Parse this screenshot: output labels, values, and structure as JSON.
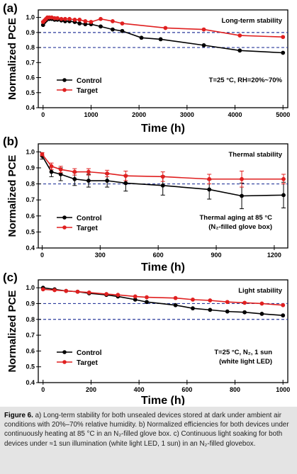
{
  "chart_data": [
    {
      "type": "line",
      "panel_label": "(a)",
      "title": "Long-term stability",
      "annotations": [
        "T=25 °C, RH=20%~70%"
      ],
      "xlabel": "Time (h)",
      "ylabel": "Normalized PCE",
      "xlim": [
        -100,
        5100
      ],
      "ylim": [
        0.4,
        1.05
      ],
      "xticks": [
        "0",
        "1000",
        "2000",
        "3000",
        "4000",
        "5000"
      ],
      "yticks": [
        "0.4",
        "0.5",
        "0.6",
        "0.7",
        "0.8",
        "0.9",
        "1.0"
      ],
      "reference_lines_y": [
        0.9,
        0.8
      ],
      "legend": {
        "position": "bottom-left",
        "entries": [
          "Control",
          "Target"
        ]
      },
      "series": [
        {
          "name": "Control",
          "color": "#000000",
          "x": [
            0,
            30,
            60,
            90,
            130,
            180,
            240,
            300,
            380,
            460,
            550,
            660,
            760,
            880,
            1000,
            1200,
            1450,
            1650,
            2050,
            2450,
            3350,
            4100,
            5000
          ],
          "y": [
            0.95,
            0.97,
            0.98,
            0.99,
            0.99,
            0.99,
            0.985,
            0.985,
            0.98,
            0.975,
            0.975,
            0.97,
            0.96,
            0.955,
            0.955,
            0.94,
            0.92,
            0.91,
            0.865,
            0.855,
            0.815,
            0.78,
            0.765
          ]
        },
        {
          "name": "Target",
          "color": "#e02020",
          "x": [
            0,
            30,
            60,
            90,
            130,
            180,
            240,
            300,
            380,
            460,
            550,
            660,
            760,
            880,
            1000,
            1200,
            1450,
            1650,
            2550,
            3350,
            4100,
            5000
          ],
          "y": [
            0.97,
            0.98,
            0.99,
            1.0,
            1.0,
            1.0,
            0.995,
            0.995,
            0.99,
            0.99,
            0.99,
            0.985,
            0.985,
            0.975,
            0.97,
            0.99,
            0.975,
            0.96,
            0.93,
            0.92,
            0.88,
            0.87
          ]
        }
      ]
    },
    {
      "type": "line",
      "panel_label": "(b)",
      "title": "Thermal stability",
      "annotations": [
        "Thermal aging at 85 °C",
        "(N₂-filled glove box)"
      ],
      "xlabel": "Time (h)",
      "ylabel": "Normalized PCE",
      "xlim": [
        -20,
        1270
      ],
      "ylim": [
        0.4,
        1.05
      ],
      "xticks": [
        "0",
        "300",
        "600",
        "900",
        "1200"
      ],
      "yticks": [
        "0.4",
        "0.5",
        "0.6",
        "0.7",
        "0.8",
        "0.9",
        "1.0"
      ],
      "reference_lines_y": [
        0.8
      ],
      "legend": {
        "position": "bottom-left",
        "entries": [
          "Control",
          "Target"
        ]
      },
      "series": [
        {
          "name": "Control",
          "color": "#000000",
          "x": [
            0,
            48,
            96,
            168,
            240,
            336,
            432,
            624,
            864,
            1032,
            1248
          ],
          "y": [
            0.975,
            0.875,
            0.86,
            0.83,
            0.82,
            0.82,
            0.805,
            0.79,
            0.765,
            0.725,
            0.73
          ],
          "error": [
            0.02,
            0.03,
            0.04,
            0.04,
            0.04,
            0.04,
            0.05,
            0.06,
            0.06,
            0.08,
            0.08
          ]
        },
        {
          "name": "Target",
          "color": "#e02020",
          "x": [
            0,
            48,
            96,
            168,
            240,
            336,
            432,
            624,
            864,
            1032,
            1248
          ],
          "y": [
            0.985,
            0.91,
            0.89,
            0.875,
            0.875,
            0.865,
            0.85,
            0.845,
            0.83,
            0.83,
            0.83
          ],
          "error": [
            0.01,
            0.02,
            0.02,
            0.02,
            0.02,
            0.02,
            0.03,
            0.03,
            0.03,
            0.05,
            0.03
          ]
        }
      ]
    },
    {
      "type": "line",
      "panel_label": "(c)",
      "title": "Light stability",
      "annotations": [
        "T=25 °C, N₂, 1 sun",
        "(white light LED)"
      ],
      "xlabel": "Time (h)",
      "ylabel": "Normalized PCE",
      "xlim": [
        -20,
        1020
      ],
      "ylim": [
        0.4,
        1.05
      ],
      "xticks": [
        "0",
        "200",
        "400",
        "600",
        "800",
        "1000"
      ],
      "yticks": [
        "0.4",
        "0.5",
        "0.6",
        "0.7",
        "0.8",
        "0.9",
        "1.0"
      ],
      "reference_lines_y": [
        0.9,
        0.8
      ],
      "legend": {
        "position": "bottom-left",
        "entries": [
          "Control",
          "Target"
        ]
      },
      "series": [
        {
          "name": "Control",
          "color": "#000000",
          "x": [
            0,
            48,
            96,
            144,
            192,
            264,
            312,
            384,
            432,
            552,
            624,
            696,
            768,
            840,
            912,
            1000
          ],
          "y": [
            1.0,
            0.99,
            0.98,
            0.975,
            0.965,
            0.955,
            0.945,
            0.925,
            0.91,
            0.89,
            0.87,
            0.86,
            0.85,
            0.845,
            0.835,
            0.825
          ]
        },
        {
          "name": "Target",
          "color": "#e02020",
          "x": [
            0,
            48,
            96,
            144,
            192,
            264,
            312,
            384,
            432,
            552,
            624,
            696,
            768,
            840,
            912,
            1000
          ],
          "y": [
            0.99,
            0.985,
            0.98,
            0.975,
            0.97,
            0.96,
            0.955,
            0.945,
            0.94,
            0.935,
            0.925,
            0.92,
            0.91,
            0.905,
            0.9,
            0.89
          ]
        }
      ]
    }
  ],
  "caption": {
    "label": "Figure 6.",
    "text": "a) Long-term stability for both unsealed devices stored at dark under ambient air conditions with 20%–70% relative humidity. b) Normalized efficiencies for both devices under continuously heating at 85 °C in an N₂-filled glove box. c) Continuous light soaking for both devices under ≈1 sun illumination (white light LED, 1 sun) in an N₂-filled glovebox."
  }
}
